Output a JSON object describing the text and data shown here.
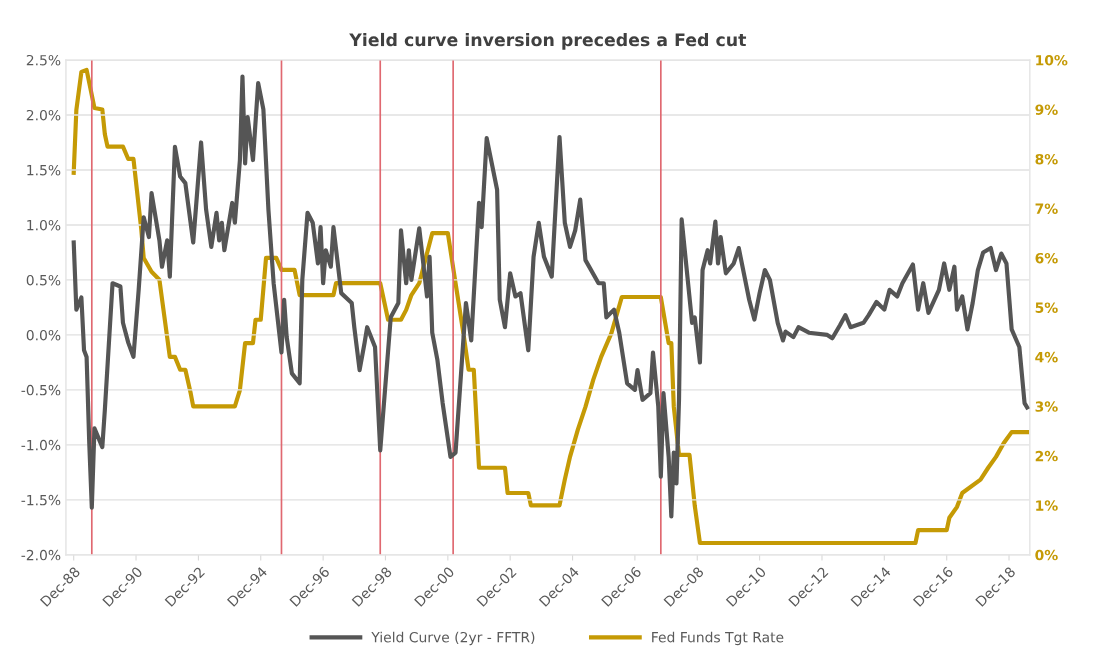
{
  "chart_data": {
    "type": "line",
    "title": "Yield curve inversion precedes a Fed cut",
    "xlim": [
      "1988-09",
      "2019-08"
    ],
    "xticks": [
      {
        "value": "1988-12",
        "label": "Dec-88"
      },
      {
        "value": "1990-12",
        "label": "Dec-90"
      },
      {
        "value": "1992-12",
        "label": "Dec-92"
      },
      {
        "value": "1994-12",
        "label": "Dec-94"
      },
      {
        "value": "1996-12",
        "label": "Dec-96"
      },
      {
        "value": "1998-12",
        "label": "Dec-98"
      },
      {
        "value": "2000-12",
        "label": "Dec-00"
      },
      {
        "value": "2002-12",
        "label": "Dec-02"
      },
      {
        "value": "2004-12",
        "label": "Dec-04"
      },
      {
        "value": "2006-12",
        "label": "Dec-06"
      },
      {
        "value": "2008-12",
        "label": "Dec-08"
      },
      {
        "value": "2010-12",
        "label": "Dec-10"
      },
      {
        "value": "2012-12",
        "label": "Dec-12"
      },
      {
        "value": "2014-12",
        "label": "Dec-14"
      },
      {
        "value": "2016-12",
        "label": "Dec-16"
      },
      {
        "value": "2018-12",
        "label": "Dec-18"
      }
    ],
    "ylim": [
      -2,
      2.5
    ],
    "yticks": [
      {
        "value": -2,
        "label": "-2.0%"
      },
      {
        "value": -1.5,
        "label": "-1.5%"
      },
      {
        "value": -1,
        "label": "-1.0%"
      },
      {
        "value": -0.5,
        "label": "-0.5%"
      },
      {
        "value": 0,
        "label": "0.0%"
      },
      {
        "value": 0.5,
        "label": "0.5%"
      },
      {
        "value": 1,
        "label": "1.0%"
      },
      {
        "value": 1.5,
        "label": "1.5%"
      },
      {
        "value": 2,
        "label": "2.0%"
      },
      {
        "value": 2.5,
        "label": "2.5%"
      }
    ],
    "y2lim": [
      0,
      10
    ],
    "y2ticks": [
      {
        "value": 0,
        "label": "0%"
      },
      {
        "value": 1,
        "label": "1%"
      },
      {
        "value": 2,
        "label": "2%"
      },
      {
        "value": 3,
        "label": "3%"
      },
      {
        "value": 4,
        "label": "4%"
      },
      {
        "value": 5,
        "label": "5%"
      },
      {
        "value": 6,
        "label": "6%"
      },
      {
        "value": 7,
        "label": "7%"
      },
      {
        "value": 8,
        "label": "8%"
      },
      {
        "value": 9,
        "label": "9%"
      },
      {
        "value": 10,
        "label": "10%"
      }
    ],
    "grid": "y",
    "legend": "bottom",
    "ref_lines": [
      {
        "axis": "x",
        "value": "1989-07",
        "color": "#e06870"
      },
      {
        "axis": "x",
        "value": "1995-08",
        "color": "#e06870"
      },
      {
        "axis": "x",
        "value": "1998-10",
        "color": "#e06870"
      },
      {
        "axis": "x",
        "value": "2001-02",
        "color": "#e06870"
      },
      {
        "axis": "x",
        "value": "2007-10",
        "color": "#e06870"
      }
    ],
    "series": [
      {
        "name": "Yield Curve (2yr - FFTR)",
        "color": "#555555",
        "x": [
          "1988-12",
          "1989-01",
          "1989-03",
          "1989-04",
          "1989-05",
          "1989-06",
          "1989-07",
          "1989-08",
          "1989-11",
          "1989-12",
          "1990-03",
          "1990-06",
          "1990-07",
          "1990-09",
          "1990-11",
          "1991-01",
          "1991-03",
          "1991-05",
          "1991-06",
          "1991-09",
          "1991-10",
          "1991-12",
          "1992-01",
          "1992-03",
          "1992-05",
          "1992-07",
          "1992-10",
          "1993-01",
          "1993-03",
          "1993-05",
          "1993-07",
          "1993-08",
          "1993-09",
          "1993-10",
          "1994-01",
          "1994-02",
          "1994-04",
          "1994-05",
          "1994-06",
          "1994-07",
          "1994-09",
          "1994-11",
          "1995-01",
          "1995-03",
          "1995-05",
          "1995-08",
          "1995-09",
          "1995-10",
          "1995-12",
          "1996-03",
          "1996-04",
          "1996-06",
          "1996-08",
          "1996-10",
          "1996-11",
          "1996-12",
          "1997-01",
          "1997-03",
          "1997-04",
          "1997-07",
          "1997-11",
          "1997-12",
          "1998-02",
          "1998-04",
          "1998-05",
          "1998-08",
          "1998-10",
          "1999-02",
          "1999-05",
          "1999-06",
          "1999-08",
          "1999-09",
          "1999-10",
          "2000-01",
          "2000-04",
          "2000-05",
          "2000-06",
          "2000-08",
          "2000-10",
          "2001-01",
          "2001-03",
          "2001-07",
          "2001-09",
          "2001-12",
          "2002-01",
          "2002-03",
          "2002-07",
          "2002-08",
          "2002-10",
          "2002-12",
          "2003-02",
          "2003-04",
          "2003-07",
          "2003-09",
          "2003-11",
          "2004-01",
          "2004-04",
          "2004-07",
          "2004-09",
          "2004-11",
          "2005-01",
          "2005-03",
          "2005-05",
          "2005-10",
          "2005-12",
          "2006-01",
          "2006-04",
          "2006-06",
          "2006-09",
          "2006-12",
          "2007-01",
          "2007-03",
          "2007-06",
          "2007-07",
          "2007-09",
          "2007-10",
          "2007-11",
          "2008-01",
          "2008-02",
          "2008-03",
          "2008-04",
          "2008-05",
          "2008-06",
          "2008-10",
          "2008-11",
          "2009-01",
          "2009-02",
          "2009-04",
          "2009-05",
          "2009-07",
          "2009-08",
          "2009-09",
          "2009-11",
          "2010-02",
          "2010-04",
          "2010-08",
          "2010-10",
          "2010-12",
          "2011-02",
          "2011-04",
          "2011-07",
          "2011-09",
          "2011-10",
          "2012-01",
          "2012-03",
          "2012-07",
          "2013-02",
          "2013-04",
          "2013-07",
          "2013-09",
          "2013-11",
          "2014-04",
          "2014-06",
          "2014-09",
          "2014-12",
          "2015-02",
          "2015-05",
          "2015-07",
          "2015-11",
          "2016-01",
          "2016-03",
          "2016-05",
          "2016-09",
          "2016-11",
          "2017-01",
          "2017-03",
          "2017-04",
          "2017-06",
          "2017-08",
          "2017-10",
          "2017-12",
          "2018-02",
          "2018-05",
          "2018-07",
          "2018-09",
          "2018-11",
          "2019-01",
          "2019-04",
          "2019-06",
          "2019-07"
        ],
        "values": [
          0.84,
          0.23,
          0.34,
          -0.14,
          -0.2,
          -0.98,
          -1.57,
          -0.85,
          -1.02,
          -0.68,
          0.47,
          0.44,
          0.11,
          -0.07,
          -0.2,
          0.41,
          1.07,
          0.89,
          1.29,
          0.86,
          0.62,
          0.86,
          0.53,
          1.71,
          1.44,
          1.38,
          0.84,
          1.75,
          1.14,
          0.8,
          1.11,
          0.86,
          1.02,
          0.77,
          1.2,
          1.02,
          1.59,
          2.35,
          1.56,
          1.98,
          1.59,
          2.29,
          2.05,
          1.14,
          0.47,
          -0.16,
          0.32,
          -0.02,
          -0.35,
          -0.44,
          0.5,
          1.11,
          1.02,
          0.65,
          0.98,
          0.47,
          0.77,
          0.62,
          0.98,
          0.38,
          0.29,
          0.07,
          -0.32,
          -0.07,
          0.07,
          -0.11,
          -1.05,
          0.16,
          0.29,
          0.95,
          0.47,
          0.77,
          0.5,
          0.97,
          0.35,
          0.71,
          0.02,
          -0.23,
          -0.62,
          -1.11,
          -1.07,
          0.29,
          -0.05,
          1.2,
          0.98,
          1.79,
          1.32,
          0.32,
          0.07,
          0.56,
          0.35,
          0.38,
          -0.14,
          0.71,
          1.02,
          0.71,
          0.53,
          1.8,
          1.02,
          0.8,
          0.95,
          1.23,
          0.68,
          0.47,
          0.47,
          0.16,
          0.23,
          0.02,
          -0.44,
          -0.5,
          -0.32,
          -0.59,
          -0.53,
          -0.16,
          -0.65,
          -1.29,
          -0.53,
          -1.11,
          -1.65,
          -1.07,
          -1.35,
          -0.59,
          1.05,
          0.11,
          0.16,
          -0.25,
          0.59,
          0.77,
          0.65,
          1.03,
          0.65,
          0.89,
          0.56,
          0.65,
          0.79,
          0.32,
          0.14,
          0.38,
          0.59,
          0.5,
          0.11,
          -0.05,
          0.03,
          -0.02,
          0.07,
          0.02,
          0,
          -0.03,
          0.09,
          0.18,
          0.07,
          0.11,
          0.18,
          0.3,
          0.23,
          0.41,
          0.35,
          0.47,
          0.64,
          0.23,
          0.47,
          0.2,
          0.41,
          0.65,
          0.41,
          0.62,
          0.23,
          0.35,
          0.05,
          0.29,
          0.59,
          0.75,
          0.79,
          0.59,
          0.74,
          0.65,
          0.05,
          -0.11,
          -0.62,
          -0.66
        ]
      },
      {
        "name": "Fed Funds Tgt Rate",
        "color": "#c59a05",
        "axis": "y2",
        "x": [
          "1988-12",
          "1989-01",
          "1989-03",
          "1989-05",
          "1989-08",
          "1989-11",
          "1989-12",
          "1990-01",
          "1990-07",
          "1990-09",
          "1990-11",
          "1991-02",
          "1991-03",
          "1991-06",
          "1991-09",
          "1992-01",
          "1992-03",
          "1992-05",
          "1992-07",
          "1992-09",
          "1992-10",
          "1994-02",
          "1994-04",
          "1994-06",
          "1994-09",
          "1994-10",
          "1994-12",
          "1995-02",
          "1995-06",
          "1995-08",
          "1996-01",
          "1996-03",
          "1997-04",
          "1997-05",
          "1998-10",
          "1999-01",
          "1999-06",
          "1999-08",
          "1999-10",
          "2000-01",
          "2000-06",
          "2000-12",
          "2001-03",
          "2001-06",
          "2001-08",
          "2001-10",
          "2001-12",
          "2002-10",
          "2002-11",
          "2003-07",
          "2003-08",
          "2004-07",
          "2004-09",
          "2004-11",
          "2005-02",
          "2005-05",
          "2005-08",
          "2005-11",
          "2006-03",
          "2006-07",
          "2007-10",
          "2008-01",
          "2008-02",
          "2008-03",
          "2008-05",
          "2008-09",
          "2008-11",
          "2009-01",
          "2015-12",
          "2016-01",
          "2016-12",
          "2017-01",
          "2017-04",
          "2017-06",
          "2018-01",
          "2018-04",
          "2018-07",
          "2018-10",
          "2019-01",
          "2019-07"
        ],
        "values": [
          7.72,
          8.99,
          9.76,
          9.8,
          9.03,
          9.0,
          8.5,
          8.25,
          8.25,
          8.0,
          8.0,
          6.57,
          6.0,
          5.72,
          5.56,
          4.0,
          4.0,
          3.74,
          3.74,
          3.27,
          3.0,
          3.0,
          3.33,
          4.28,
          4.28,
          4.75,
          4.75,
          6.0,
          6.0,
          5.76,
          5.76,
          5.25,
          5.25,
          5.49,
          5.49,
          4.75,
          4.75,
          4.95,
          5.25,
          5.49,
          6.5,
          6.5,
          5.49,
          4.48,
          3.74,
          3.74,
          1.76,
          1.76,
          1.25,
          1.25,
          1.0,
          1.0,
          1.52,
          1.98,
          2.53,
          2.99,
          3.54,
          4.0,
          4.48,
          5.21,
          5.21,
          4.28,
          4.28,
          2.99,
          2.02,
          2.02,
          1.0,
          0.24,
          0.24,
          0.5,
          0.5,
          0.75,
          0.97,
          1.25,
          1.52,
          1.76,
          1.98,
          2.26,
          2.48,
          2.48
        ]
      }
    ]
  }
}
